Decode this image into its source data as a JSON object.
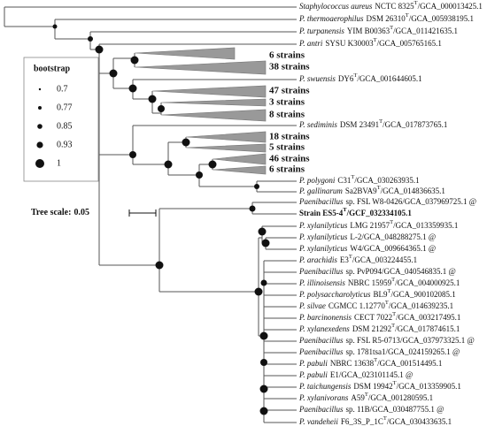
{
  "legend": {
    "title": "bootstrap",
    "items": [
      0.7,
      0.77,
      0.85,
      0.93,
      1
    ]
  },
  "tree_scale": {
    "label": "Tree scale:",
    "value": 0.05
  },
  "leaves": [
    {
      "taxon": "Staphylococcus aureus",
      "rest": "NCTC 8325",
      "sup": "T",
      "acc": "/GCA_000013425.1"
    },
    {
      "taxon": "P. thermoaerophilus",
      "rest": "DSM 26310",
      "sup": "T",
      "acc": "/GCA_005938195.1"
    },
    {
      "taxon": "P. turpanensis",
      "rest": "YIM B00363",
      "sup": "T",
      "acc": "/GCA_011421635.1"
    },
    {
      "taxon": "P. antri",
      "rest": "SYSU K30003",
      "sup": "T",
      "acc": "/GCA_005765165.1"
    },
    {
      "clade": "6 strains"
    },
    {
      "clade": "38 strains"
    },
    {
      "taxon": "P. swuensis",
      "rest": "DY6",
      "sup": "T",
      "acc": "/GCA_001644605.1"
    },
    {
      "clade": "47 strains"
    },
    {
      "clade": "3 strains"
    },
    {
      "clade": "8 strains"
    },
    {
      "taxon": "P. sediminis",
      "rest": "DSM 23491",
      "sup": "T",
      "acc": "/GCA_017873765.1"
    },
    {
      "clade": "18 strains"
    },
    {
      "clade": "5 strains"
    },
    {
      "clade": "46 strains"
    },
    {
      "clade": "6 strains"
    },
    {
      "taxon": "P. polygoni",
      "rest": "C31",
      "sup": "T",
      "acc": "/GCA_030263935.1"
    },
    {
      "taxon": "P. gallinarum",
      "rest": "Sa2BVA9",
      "sup": "T",
      "acc": "/GCA_014836635.1"
    },
    {
      "taxon": "Paenibacillus",
      "rest": "sp. FSL W8-0426",
      "acc": "/GCA_037969725.1 @"
    },
    {
      "rest": "Strain ES5-4",
      "sup": "T",
      "acc": "/GCF_032334105.1",
      "bold": true
    },
    {
      "taxon": "P. xylanilyticus",
      "rest": "LMG 21957",
      "sup": "T",
      "acc": "/GCA_013359935.1"
    },
    {
      "taxon": "P. xylanilyticus",
      "rest": "L-2",
      "acc": "/GCA_048288275.1 @"
    },
    {
      "taxon": "P. xylanilyticus",
      "rest": "W4",
      "acc": "/GCA_009664365.1 @"
    },
    {
      "taxon": "P. arachidis",
      "rest": "E3",
      "sup": "T",
      "acc": "/GCA_003224455.1"
    },
    {
      "taxon": "Paenibacillus",
      "rest": "sp. PvP094",
      "acc": "/GCA_040546835.1 @"
    },
    {
      "taxon": "P. illinoisensis",
      "rest": "NBRC 15959",
      "sup": "T",
      "acc": "/GCA_004000925.1"
    },
    {
      "taxon": "P. polysaccharolyticus",
      "rest": "BL9",
      "sup": "T",
      "acc": "/GCA_900102085.1"
    },
    {
      "taxon": "P. silvae",
      "rest": "CGMCC 1.12770",
      "sup": "T",
      "acc": "/GCA_014639235.1"
    },
    {
      "taxon": "P. barcinonensis",
      "rest": "CECT 7022",
      "sup": "T",
      "acc": "/GCA_003217495.1"
    },
    {
      "taxon": "P. xylanexedens",
      "rest": "DSM 21292",
      "sup": "T",
      "acc": "/GCA_017874615.1"
    },
    {
      "taxon": "Paenibacillus",
      "rest": "sp. FSL R5-0713",
      "acc": "/GCA_037973325.1 @"
    },
    {
      "taxon": "Paenibacillus",
      "rest": "sp. 1781tsa1",
      "acc": "/GCA_024159265.1 @"
    },
    {
      "taxon": "P. pabuli",
      "rest": "NBRC 13638",
      "sup": "T",
      "acc": "/GCA_001514495.1"
    },
    {
      "taxon": "P. pabuli",
      "rest": "E1",
      "acc": "/GCA_023101145.1 @"
    },
    {
      "taxon": "P. taichungensis",
      "rest": "DSM 19942",
      "sup": "T",
      "acc": "/GCA_013359905.1"
    },
    {
      "taxon": "P. xylanivorans",
      "rest": "A59",
      "sup": "T",
      "acc": "/GCA_001280595.1"
    },
    {
      "taxon": "Paenibacillus",
      "rest": "sp. 11B",
      "acc": "/GCA_030487755.1 @"
    },
    {
      "taxon": "P. vandeheii",
      "rest": "F6_3S_P_1C",
      "sup": "T",
      "acc": "/GCA_030433635.1"
    }
  ]
}
